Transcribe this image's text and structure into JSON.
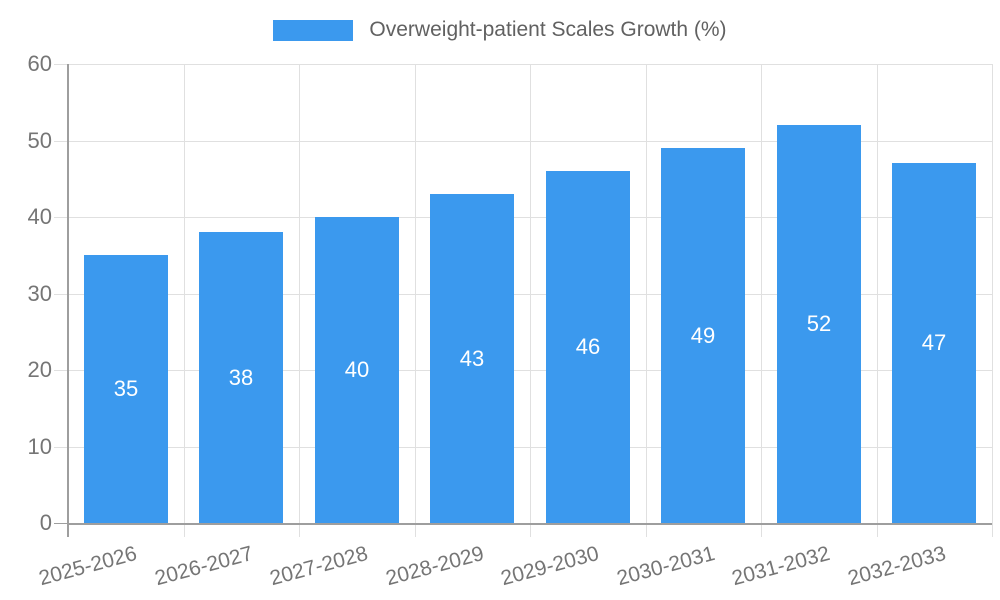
{
  "chart_data": {
    "type": "bar",
    "title": "Overweight-patient Scales Growth (%)",
    "categories": [
      "2025-2026",
      "2026-2027",
      "2027-2028",
      "2028-2029",
      "2029-2030",
      "2030-2031",
      "2031-2032",
      "2032-2033"
    ],
    "values": [
      35,
      38,
      40,
      43,
      46,
      49,
      52,
      47
    ],
    "xlabel": "",
    "ylabel": "",
    "ylim": [
      0,
      60
    ],
    "yticks": [
      0,
      10,
      20,
      30,
      40,
      50,
      60
    ],
    "grid": "on",
    "legend_position": "top-center",
    "value_labels": "inside-center"
  },
  "colors": {
    "bar": "#3B99EE",
    "grid": "#E0E0E0",
    "axis": "#9E9E9E",
    "tick_text": "#757575",
    "legend_text": "#616161",
    "value_text": "#FFFFFF",
    "background": "#FFFFFF"
  }
}
